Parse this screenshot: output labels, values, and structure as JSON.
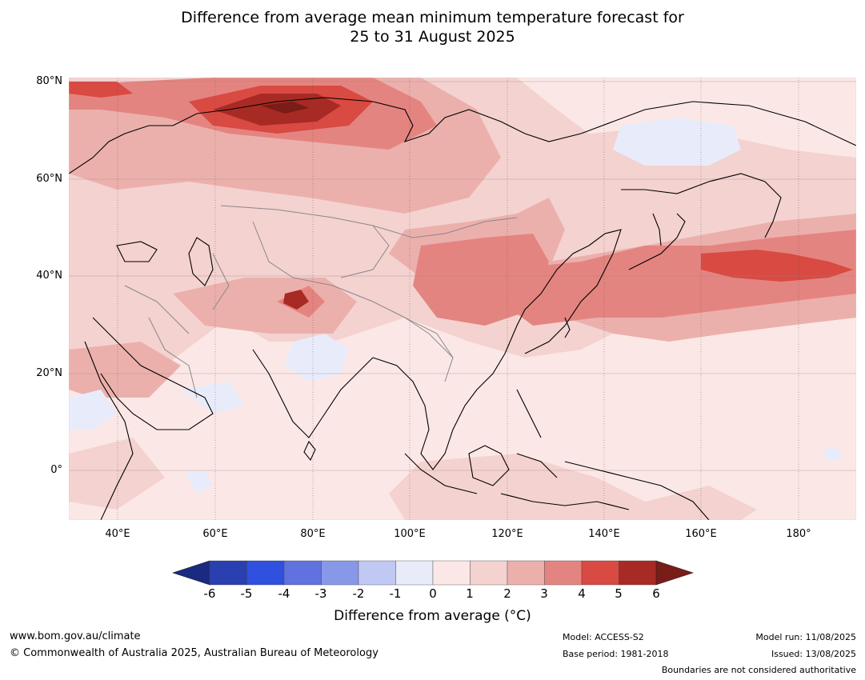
{
  "title": {
    "line1": "Difference from average mean minimum temperature forecast for",
    "line2": "25 to 31 August 2025"
  },
  "map": {
    "lat_labels": [
      "80°N",
      "60°N",
      "40°N",
      "20°N",
      "0°"
    ],
    "lon_labels": [
      "40°E",
      "60°E",
      "80°E",
      "100°E",
      "120°E",
      "140°E",
      "160°E",
      "180°"
    ],
    "lat_range": [
      -10,
      81
    ],
    "lon_range": [
      30,
      191
    ],
    "colors": {
      "land_outline": "#000000",
      "boundary": "#888888",
      "gridline": "#5a4a4a"
    }
  },
  "colorbar": {
    "ticks": [
      "-6",
      "-5",
      "-4",
      "-3",
      "-2",
      "-1",
      "0",
      "1",
      "2",
      "3",
      "4",
      "5",
      "6"
    ],
    "colors": [
      "#1a2a80",
      "#2a3fb0",
      "#3050e0",
      "#6072e0",
      "#8898e8",
      "#c0c8f4",
      "#e8ecfa",
      "#fbe8e6",
      "#f4d2d0",
      "#ecb0ac",
      "#e48480",
      "#d84a42",
      "#a82a24",
      "#7a1c18"
    ],
    "title": "Difference from average (°C)"
  },
  "footer": {
    "website": "www.bom.gov.au/climate",
    "copyright": "© Commonwealth of Australia 2025, Australian Bureau of Meteorology",
    "model": "Model: ACCESS-S2",
    "base_period": "Base period: 1981-2018",
    "model_run": "Model run: 11/08/2025",
    "issued": "Issued: 13/08/2025",
    "disclaimer": "Boundaries are not considered authoritative"
  }
}
